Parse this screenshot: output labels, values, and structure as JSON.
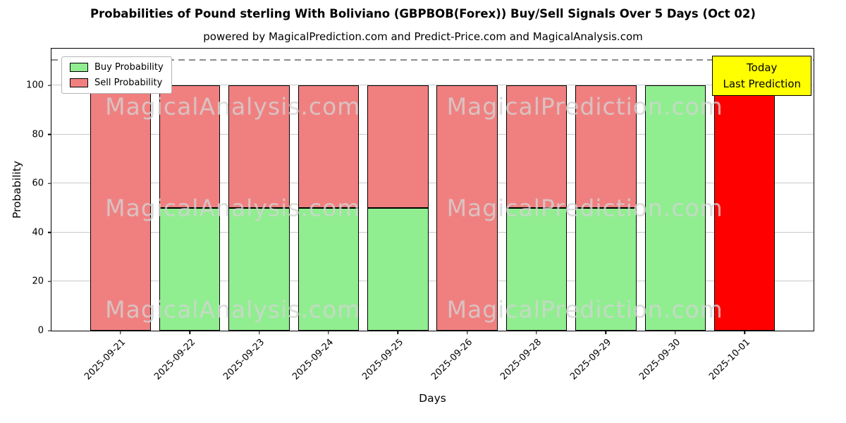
{
  "chart_data": {
    "type": "bar",
    "stacked": true,
    "title": "Probabilities of Pound sterling With Boliviano (GBPBOB(Forex)) Buy/Sell Signals Over 5 Days (Oct 02)",
    "subtitle": "powered by MagicalPrediction.com and Predict-Price.com and MagicalAnalysis.com",
    "xlabel": "Days",
    "ylabel": "Probability",
    "ylim": [
      0,
      115
    ],
    "yticks": [
      0,
      20,
      40,
      60,
      80,
      100
    ],
    "dashed_line_y": 110,
    "grid": "horizontal",
    "legend_position": "upper-left",
    "categories": [
      "2025-09-21",
      "2025-09-22",
      "2025-09-23",
      "2025-09-24",
      "2025-09-25",
      "2025-09-26",
      "2025-09-28",
      "2025-09-29",
      "2025-09-30",
      "2025-10-01"
    ],
    "series": [
      {
        "name": "Buy Probability",
        "color": "#90ee90",
        "values": [
          0,
          50,
          50,
          50,
          50,
          0,
          50,
          50,
          100,
          0
        ]
      },
      {
        "name": "Sell Probability",
        "color": "#f08080",
        "values": [
          100,
          50,
          50,
          50,
          50,
          100,
          50,
          50,
          0,
          100
        ]
      }
    ],
    "today_bar": {
      "index": 9,
      "color": "#ff0000"
    },
    "annotation": {
      "line1": "Today",
      "line2": "Last Prediction",
      "bg": "#ffff00"
    },
    "watermarks": [
      {
        "text": "MagicalAnalysis.com",
        "x": 23.8,
        "y": 20.5
      },
      {
        "text": "MagicalPrediction.com",
        "x": 70.0,
        "y": 20.5
      },
      {
        "text": "MagicalAnalysis.com",
        "x": 23.8,
        "y": 56.5
      },
      {
        "text": "MagicalPrediction.com",
        "x": 70.0,
        "y": 56.5
      },
      {
        "text": "MagicalAnalysis.com",
        "x": 23.8,
        "y": 92.5
      },
      {
        "text": "MagicalPrediction.com",
        "x": 70.0,
        "y": 92.5
      }
    ]
  }
}
